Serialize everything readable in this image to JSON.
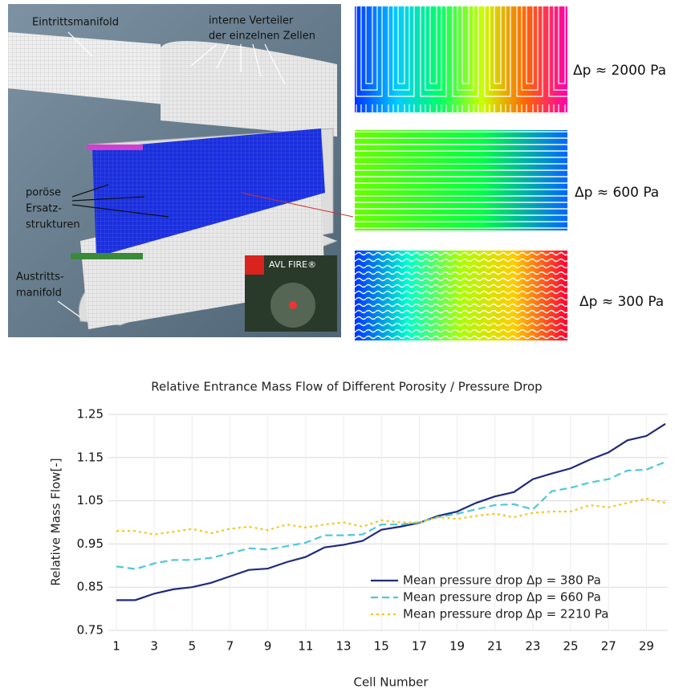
{
  "figure": {
    "labels": {
      "inlet": "Eintrittsmanifold",
      "distributors": [
        "interne Verteiler",
        "der einzelnen Zellen"
      ],
      "porous": [
        "poröse",
        "Ersatz-",
        "strukturen"
      ],
      "outlet": [
        "Austritts-",
        "manifold"
      ]
    },
    "logo": "AVL FIRE®",
    "pressure_labels": [
      "Δp ≈ 2000 Pa",
      "Δp ≈ 600 Pa",
      "Δp ≈ 300 Pa"
    ]
  },
  "chart_data": {
    "type": "line",
    "title": "Relative Entrance Mass Flow of Different Porosity / Pressure Drop",
    "x_label": "Cell Number",
    "y_label": "Relative Mass Flow[-]",
    "x": [
      1,
      2,
      3,
      4,
      5,
      6,
      7,
      8,
      9,
      10,
      11,
      12,
      13,
      14,
      15,
      16,
      17,
      18,
      19,
      20,
      21,
      22,
      23,
      24,
      25,
      26,
      27,
      28,
      29,
      30
    ],
    "xlim": [
      1,
      30
    ],
    "xticks": [
      1,
      3,
      5,
      7,
      9,
      11,
      13,
      15,
      17,
      19,
      21,
      23,
      25,
      27,
      29
    ],
    "ylim": [
      0.75,
      1.25
    ],
    "yticks": [
      0.75,
      0.85,
      0.95,
      1.05,
      1.15,
      1.25
    ],
    "grid": true,
    "legend": "lower-right",
    "series": [
      {
        "name": "Mean pressure drop Δp = 380 Pa",
        "color": "#1f2a7c",
        "dash": "solid",
        "values": [
          0.82,
          0.82,
          0.835,
          0.845,
          0.85,
          0.86,
          0.875,
          0.89,
          0.893,
          0.908,
          0.92,
          0.942,
          0.948,
          0.957,
          0.983,
          0.99,
          0.999,
          1.015,
          1.025,
          1.045,
          1.06,
          1.07,
          1.1,
          1.113,
          1.125,
          1.145,
          1.162,
          1.19,
          1.2,
          1.228
        ]
      },
      {
        "name": "Mean pressure drop Δp = 660 Pa",
        "color": "#4dc8d8",
        "dash": "dashed",
        "values": [
          0.898,
          0.892,
          0.905,
          0.913,
          0.913,
          0.918,
          0.928,
          0.94,
          0.937,
          0.945,
          0.953,
          0.97,
          0.97,
          0.972,
          0.995,
          0.995,
          1.0,
          1.012,
          1.02,
          1.03,
          1.04,
          1.042,
          1.03,
          1.072,
          1.08,
          1.092,
          1.1,
          1.12,
          1.122,
          1.14
        ]
      },
      {
        "name": "Mean pressure drop Δp = 2210 Pa",
        "color": "#f5c518",
        "dash": "dotted",
        "values": [
          0.98,
          0.98,
          0.972,
          0.978,
          0.985,
          0.975,
          0.985,
          0.99,
          0.982,
          0.995,
          0.988,
          0.995,
          1.0,
          0.99,
          1.005,
          1.0,
          1.0,
          1.012,
          1.008,
          1.015,
          1.02,
          1.012,
          1.022,
          1.025,
          1.025,
          1.04,
          1.035,
          1.045,
          1.055,
          1.045
        ]
      }
    ]
  }
}
